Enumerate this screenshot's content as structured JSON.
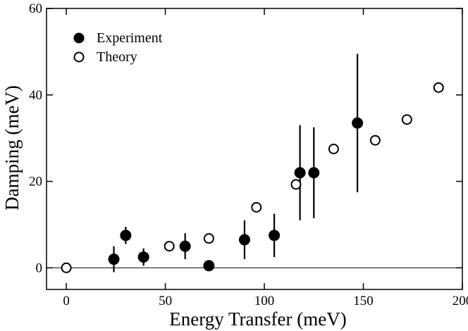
{
  "chart_data": {
    "type": "scatter",
    "title": "",
    "xlabel": "Energy Transfer (meV)",
    "ylabel": "Damping  (meV)",
    "xlim": [
      -10,
      200
    ],
    "ylim": [
      -5,
      60
    ],
    "xticks": [
      0,
      50,
      100,
      150,
      200
    ],
    "yticks": [
      0,
      20,
      40,
      60
    ],
    "reference_line": 0,
    "legend_position": "top-left",
    "series": [
      {
        "name": "Experiment",
        "marker": "filled-circle",
        "points": [
          {
            "x": 24,
            "y": 2.0,
            "err": 3.0
          },
          {
            "x": 30,
            "y": 7.5,
            "err": 2.0
          },
          {
            "x": 39,
            "y": 2.5,
            "err": 2.0
          },
          {
            "x": 60,
            "y": 5.0,
            "err": 3.0
          },
          {
            "x": 72,
            "y": 0.5,
            "err": 0
          },
          {
            "x": 90,
            "y": 6.5,
            "err": 4.5
          },
          {
            "x": 105,
            "y": 7.5,
            "err": 5.0
          },
          {
            "x": 118,
            "y": 22.0,
            "err": 11.0
          },
          {
            "x": 125,
            "y": 22.0,
            "err": 10.5
          },
          {
            "x": 147,
            "y": 33.5,
            "err": 16.0
          }
        ]
      },
      {
        "name": "Theory",
        "marker": "open-circle",
        "points": [
          {
            "x": 0,
            "y": 0
          },
          {
            "x": 52,
            "y": 5.0
          },
          {
            "x": 72,
            "y": 6.8
          },
          {
            "x": 96,
            "y": 14.0
          },
          {
            "x": 116,
            "y": 19.3
          },
          {
            "x": 135,
            "y": 27.5
          },
          {
            "x": 156,
            "y": 29.5
          },
          {
            "x": 172,
            "y": 34.3
          },
          {
            "x": 188,
            "y": 41.7
          }
        ]
      }
    ]
  }
}
